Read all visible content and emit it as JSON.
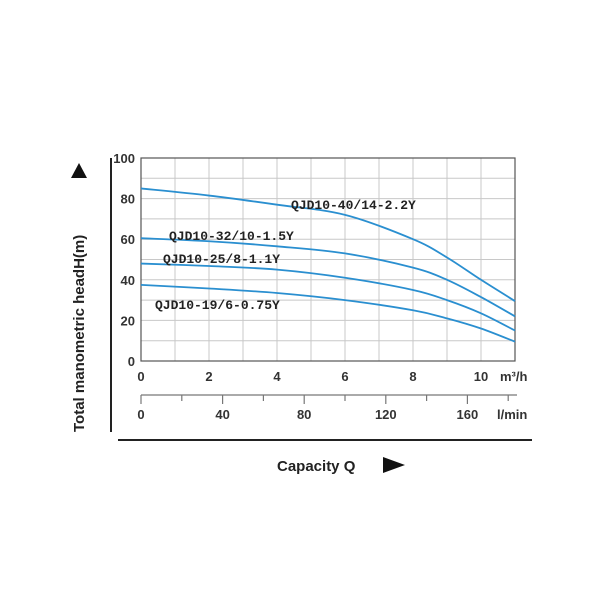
{
  "chart_data": {
    "type": "line",
    "ylabel": "Total manometric headH(m)",
    "xlabel": "Capacity Q",
    "x_unit": "m³/h",
    "x2_unit": "l/min",
    "xlim": [
      0,
      11
    ],
    "ylim": [
      0,
      100
    ],
    "x_ticks": [
      0,
      2,
      4,
      6,
      8,
      10
    ],
    "y_ticks": [
      0,
      20,
      40,
      60,
      80,
      100
    ],
    "x2_ticks": [
      0,
      40,
      80,
      120,
      160
    ],
    "grid": true,
    "line_color": "#2a8fd0",
    "series": [
      {
        "name": "QJD10-40/14-2.2Y",
        "x": [
          0,
          2,
          4,
          6,
          8,
          9,
          10,
          11
        ],
        "y": [
          85,
          81.5,
          77,
          72,
          60,
          51,
          40,
          29.5
        ]
      },
      {
        "name": "QJD10-32/10-1.5Y",
        "x": [
          0,
          2,
          4,
          6,
          8,
          9,
          10,
          11
        ],
        "y": [
          60.5,
          59,
          56.5,
          53,
          46,
          40,
          31.5,
          22
        ]
      },
      {
        "name": "QJD10-25/8-1.1Y",
        "x": [
          0,
          2,
          4,
          6,
          8,
          9,
          10,
          11
        ],
        "y": [
          48,
          46.8,
          45,
          41,
          35,
          30,
          23.5,
          15
        ]
      },
      {
        "name": "QJD10-19/6-0.75Y",
        "x": [
          0,
          2,
          4,
          6,
          8,
          9,
          10,
          11
        ],
        "y": [
          37.5,
          35.7,
          33.5,
          30,
          25,
          21,
          16,
          9.5
        ]
      }
    ]
  }
}
